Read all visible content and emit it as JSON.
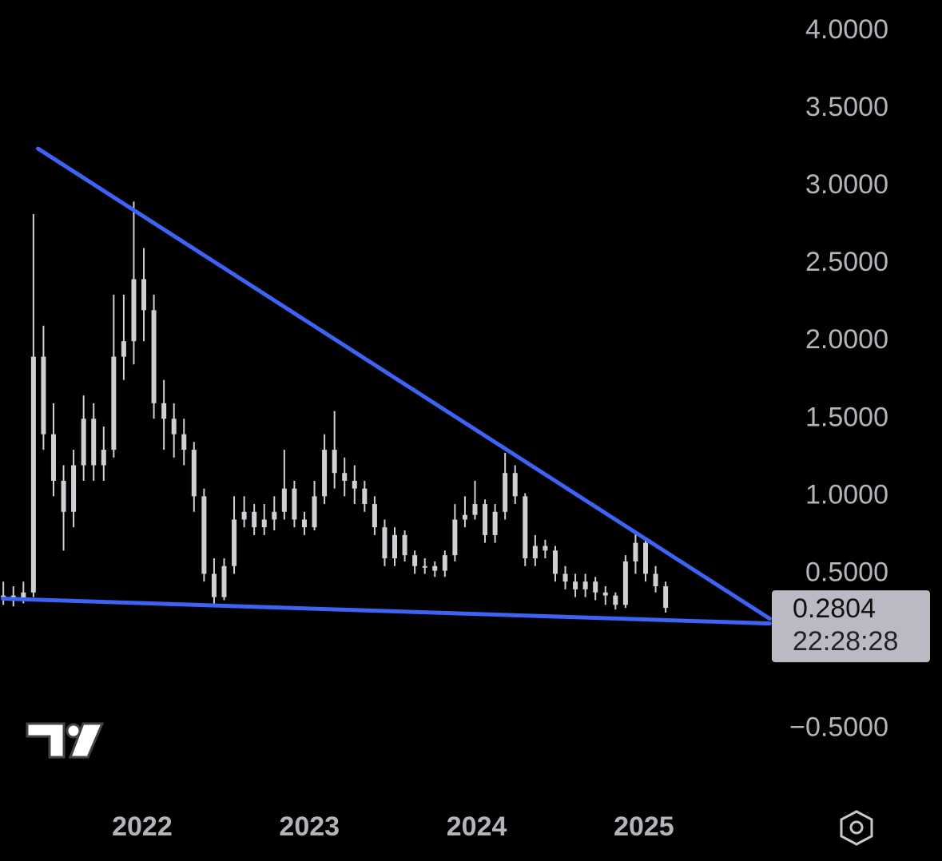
{
  "chart_data": {
    "type": "candlestick",
    "candle_color": "#cfcfd4",
    "x": [
      2021.17,
      2021.23,
      2021.29,
      2021.35,
      2021.41,
      2021.47,
      2021.53,
      2021.59,
      2021.65,
      2021.71,
      2021.77,
      2021.83,
      2021.89,
      2021.95,
      2022.01,
      2022.07,
      2022.13,
      2022.19,
      2022.25,
      2022.31,
      2022.37,
      2022.43,
      2022.49,
      2022.55,
      2022.61,
      2022.67,
      2022.73,
      2022.79,
      2022.85,
      2022.91,
      2022.97,
      2023.03,
      2023.09,
      2023.15,
      2023.21,
      2023.27,
      2023.33,
      2023.39,
      2023.45,
      2023.51,
      2023.57,
      2023.63,
      2023.69,
      2023.75,
      2023.81,
      2023.87,
      2023.93,
      2023.99,
      2024.05,
      2024.11,
      2024.17,
      2024.23,
      2024.29,
      2024.35,
      2024.41,
      2024.47,
      2024.53,
      2024.59,
      2024.65,
      2024.71,
      2024.77,
      2024.83,
      2024.89,
      2024.95,
      2025.01,
      2025.07,
      2025.13
    ],
    "open": [
      0.35,
      0.36,
      0.34,
      0.38,
      1.9,
      1.4,
      1.1,
      0.9,
      1.2,
      1.5,
      1.2,
      1.3,
      1.9,
      2.0,
      2.4,
      2.2,
      1.6,
      1.5,
      1.4,
      1.3,
      1.0,
      0.5,
      0.35,
      0.55,
      0.85,
      0.9,
      0.8,
      0.85,
      0.9,
      1.05,
      0.85,
      0.8,
      1.0,
      1.3,
      1.15,
      1.1,
      1.05,
      0.95,
      0.8,
      0.6,
      0.75,
      0.62,
      0.55,
      0.55,
      0.52,
      0.62,
      0.85,
      0.88,
      0.95,
      0.75,
      0.9,
      1.15,
      1.0,
      0.6,
      0.68,
      0.65,
      0.5,
      0.45,
      0.4,
      0.45,
      0.38,
      0.36,
      0.3,
      0.58,
      0.7,
      0.5,
      0.42
    ],
    "high": [
      0.45,
      0.42,
      0.45,
      2.82,
      2.1,
      1.6,
      1.2,
      1.3,
      1.65,
      1.6,
      1.45,
      2.3,
      2.3,
      2.9,
      2.6,
      2.3,
      1.75,
      1.6,
      1.5,
      1.35,
      1.05,
      0.6,
      0.6,
      1.0,
      1.0,
      0.95,
      0.95,
      1.0,
      1.3,
      1.1,
      0.9,
      1.1,
      1.4,
      1.55,
      1.25,
      1.2,
      1.1,
      1.0,
      0.85,
      0.8,
      0.78,
      0.65,
      0.6,
      0.58,
      0.65,
      0.95,
      1.0,
      1.1,
      0.98,
      0.95,
      1.28,
      1.2,
      1.02,
      0.75,
      0.72,
      0.68,
      0.55,
      0.5,
      0.5,
      0.48,
      0.42,
      0.38,
      0.62,
      0.77,
      0.72,
      0.55,
      0.45
    ],
    "low": [
      0.3,
      0.29,
      0.31,
      0.35,
      1.3,
      1.0,
      0.65,
      0.8,
      1.1,
      1.1,
      1.1,
      1.25,
      1.75,
      1.85,
      2.0,
      1.5,
      1.3,
      1.25,
      1.2,
      0.9,
      0.45,
      0.3,
      0.33,
      0.5,
      0.8,
      0.75,
      0.75,
      0.78,
      0.85,
      0.8,
      0.75,
      0.78,
      0.95,
      1.05,
      1.0,
      0.95,
      0.9,
      0.75,
      0.55,
      0.55,
      0.58,
      0.5,
      0.5,
      0.48,
      0.48,
      0.58,
      0.8,
      0.85,
      0.7,
      0.7,
      0.85,
      0.95,
      0.55,
      0.55,
      0.6,
      0.45,
      0.4,
      0.35,
      0.35,
      0.33,
      0.3,
      0.27,
      0.28,
      0.5,
      0.45,
      0.38,
      0.25
    ],
    "close": [
      0.36,
      0.34,
      0.38,
      1.9,
      1.4,
      1.1,
      0.9,
      1.2,
      1.5,
      1.2,
      1.3,
      1.9,
      2.0,
      2.4,
      2.2,
      1.6,
      1.5,
      1.4,
      1.3,
      1.0,
      0.5,
      0.35,
      0.55,
      0.85,
      0.9,
      0.8,
      0.85,
      0.9,
      1.05,
      0.85,
      0.8,
      1.0,
      1.3,
      1.15,
      1.1,
      1.05,
      0.95,
      0.8,
      0.6,
      0.75,
      0.62,
      0.55,
      0.55,
      0.52,
      0.62,
      0.85,
      0.88,
      0.95,
      0.75,
      0.9,
      1.15,
      1.0,
      0.6,
      0.68,
      0.65,
      0.5,
      0.45,
      0.4,
      0.45,
      0.38,
      0.36,
      0.3,
      0.58,
      0.7,
      0.5,
      0.42,
      0.2804
    ],
    "trendlines": [
      {
        "color": "#3d63f5",
        "x": [
          2021.377,
          2025.752
        ],
        "y": [
          3.242,
          0.211
        ]
      },
      {
        "color": "#3d63f5",
        "x": [
          2021.167,
          2025.752
        ],
        "y": [
          0.34,
          0.18
        ]
      }
    ],
    "xlim": [
      2021.15,
      2025.76
    ],
    "xticks": [
      2022,
      2023,
      2024,
      2025
    ],
    "ylim": [
      -0.95,
      4.2
    ],
    "yticks": [
      {
        "value": 4,
        "label": "4.0000"
      },
      {
        "value": 3.5,
        "label": "3.5000"
      },
      {
        "value": 3,
        "label": "3.0000"
      },
      {
        "value": 2.5,
        "label": "2.5000"
      },
      {
        "value": 2,
        "label": "2.0000"
      },
      {
        "value": 1.5,
        "label": "1.5000"
      },
      {
        "value": 1,
        "label": "1.0000"
      },
      {
        "value": 0.5,
        "label": "0.5000"
      },
      {
        "value": -0.5,
        "label": "−0.5000"
      }
    ],
    "last_price": 0.2804,
    "countdown": "22:28:28"
  }
}
